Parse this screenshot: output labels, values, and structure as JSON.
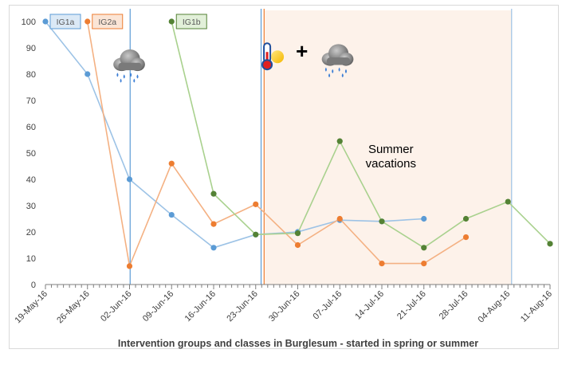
{
  "chart_data": {
    "type": "line",
    "title": "",
    "xlabel": "Intervention groups and classes in Burglesum - started in spring or summer",
    "ylabel": "",
    "ylim": [
      0,
      100
    ],
    "y_ticks": [
      0,
      10,
      20,
      30,
      40,
      50,
      60,
      70,
      80,
      90,
      100
    ],
    "grid": false,
    "categories": [
      "19-May-16",
      "26-May-16",
      "02-Jun-16",
      "09-Jun-16",
      "16-Jun-16",
      "23-Jun-16",
      "30-Jun-16",
      "07-Jul-16",
      "14-Jul-16",
      "21-Jul-16",
      "28-Jul-16",
      "04-Aug-16",
      "11-Aug-16"
    ],
    "series": [
      {
        "name": "IG1a",
        "color": "#5b9bd5",
        "line_color": "#9dc3e6",
        "values": [
          100,
          80,
          40,
          26.5,
          14,
          19,
          20,
          24.5,
          24,
          25,
          null,
          null,
          null
        ]
      },
      {
        "name": "IG2a",
        "color": "#ed7d31",
        "line_color": "#f4b183",
        "values": [
          null,
          100,
          7,
          46,
          23,
          30.5,
          15,
          25,
          8,
          8,
          18,
          null,
          null
        ]
      },
      {
        "name": "IG1b",
        "color": "#548235",
        "line_color": "#a9d18e",
        "values": [
          null,
          null,
          null,
          100,
          34.5,
          19,
          19.5,
          54.5,
          24,
          14,
          25,
          31.5,
          15.5
        ]
      }
    ],
    "vertical_lines": [
      {
        "label": "IG1a intervention start",
        "x_day": 14.1,
        "color": "#5b9bd5"
      },
      {
        "label": "IG1a intervention start",
        "x_day": 35.9,
        "color": "#5b9bd5"
      },
      {
        "label": "IG2a intervention start",
        "x_day": 36.4,
        "color": "#ed7d31"
      },
      {
        "label": "summer vacation end",
        "x_day": 77.6,
        "color": "#9dc3e6"
      }
    ],
    "shaded_region": {
      "label": "Summer vacations",
      "from_day": 36.4,
      "to_day": 77.6,
      "color": "#fdf2ea"
    },
    "annotations": [
      {
        "text": "Summer",
        "x_day": 57.5,
        "y": 50
      },
      {
        "text": "vacations",
        "x_day": 57.5,
        "y": 44.5
      },
      {
        "text": "+",
        "x_day": 42.7,
        "y": 86
      }
    ],
    "icons": [
      {
        "name": "rain-cloud-icon",
        "x_day": 13.8,
        "y": 84
      },
      {
        "name": "thermometer-sun-icon",
        "x_day": 37.3,
        "y": 86
      },
      {
        "name": "rain-cloud-icon",
        "x_day": 48.5,
        "y": 86
      }
    ]
  }
}
